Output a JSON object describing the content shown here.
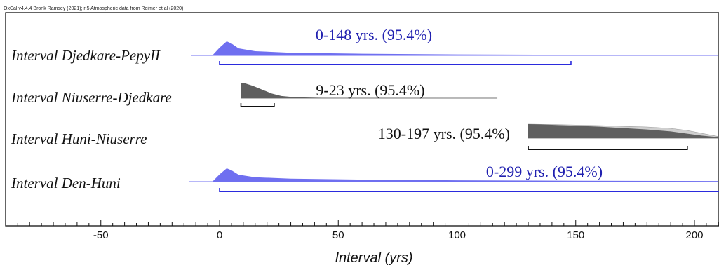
{
  "credit": "OxCal v4.4.4 Bronk Ramsey (2021); r:5 Atmospheric data from Reimer et al (2020)",
  "chart_data": {
    "type": "area",
    "title": "",
    "xlabel": "Interval (yrs)",
    "ylabel": "",
    "xlim": [
      -91,
      210
    ],
    "x_ticks": [
      -50,
      0,
      50,
      100,
      150,
      200
    ],
    "x_minor_step": 5,
    "grid": false,
    "legend": "none",
    "colors": {
      "blue": "#6f6ff0",
      "blue_line": "#2b2bdd",
      "blue_text": "#2020b0",
      "dark": "#5f5f5f",
      "light": "#cfcfcf",
      "black": "#111111"
    },
    "series": [
      {
        "name": "Interval Djedkare-PepyII",
        "style": "blue",
        "range_text": "0-148 yrs. (95.4%)",
        "range": [
          0,
          148
        ],
        "extent": [
          -12,
          210
        ],
        "density": {
          "x": [
            -3,
            0,
            3,
            5,
            8,
            15,
            30,
            60,
            100,
            148,
            210
          ],
          "y": [
            0,
            0.55,
            1.0,
            0.85,
            0.5,
            0.3,
            0.19,
            0.12,
            0.07,
            0.045,
            0.02
          ]
        }
      },
      {
        "name": "Interval Niuserre-Djedkare",
        "style": "dark",
        "range_text": "9-23 yrs. (95.4%)",
        "range": [
          9,
          23
        ],
        "extent": [
          9,
          117
        ],
        "density": {
          "x": [
            9,
            9,
            11,
            14,
            18,
            22,
            26,
            32,
            45,
            70,
            117
          ],
          "y": [
            0,
            1.0,
            0.95,
            0.8,
            0.55,
            0.3,
            0.14,
            0.06,
            0.02,
            0.008,
            0.003
          ]
        }
      },
      {
        "name": "Interval Huni-Niuserre",
        "style": "dark",
        "range_text": "130-197 yrs. (95.4%)",
        "range": [
          130,
          197
        ],
        "extent": [
          130,
          210
        ],
        "density": {
          "x": [
            130,
            130,
            140,
            160,
            180,
            190,
            197,
            203,
            210
          ],
          "y": [
            0,
            1.0,
            0.95,
            0.82,
            0.62,
            0.48,
            0.32,
            0.18,
            0.07
          ]
        },
        "density_prior": {
          "x": [
            130,
            130,
            140,
            160,
            180,
            190,
            197,
            203,
            210
          ],
          "y": [
            0,
            1.0,
            0.97,
            0.9,
            0.8,
            0.7,
            0.55,
            0.35,
            0.12
          ]
        }
      },
      {
        "name": "Interval Den-Huni",
        "style": "blue",
        "range_text": "0-299 yrs. (95.4%)",
        "range": [
          0,
          299
        ],
        "extent": [
          -13,
          210
        ],
        "density": {
          "x": [
            -3,
            0,
            3,
            5,
            8,
            15,
            30,
            60,
            100,
            150,
            210
          ],
          "y": [
            0,
            0.55,
            1.0,
            0.85,
            0.52,
            0.33,
            0.22,
            0.15,
            0.1,
            0.07,
            0.05
          ]
        }
      }
    ]
  }
}
